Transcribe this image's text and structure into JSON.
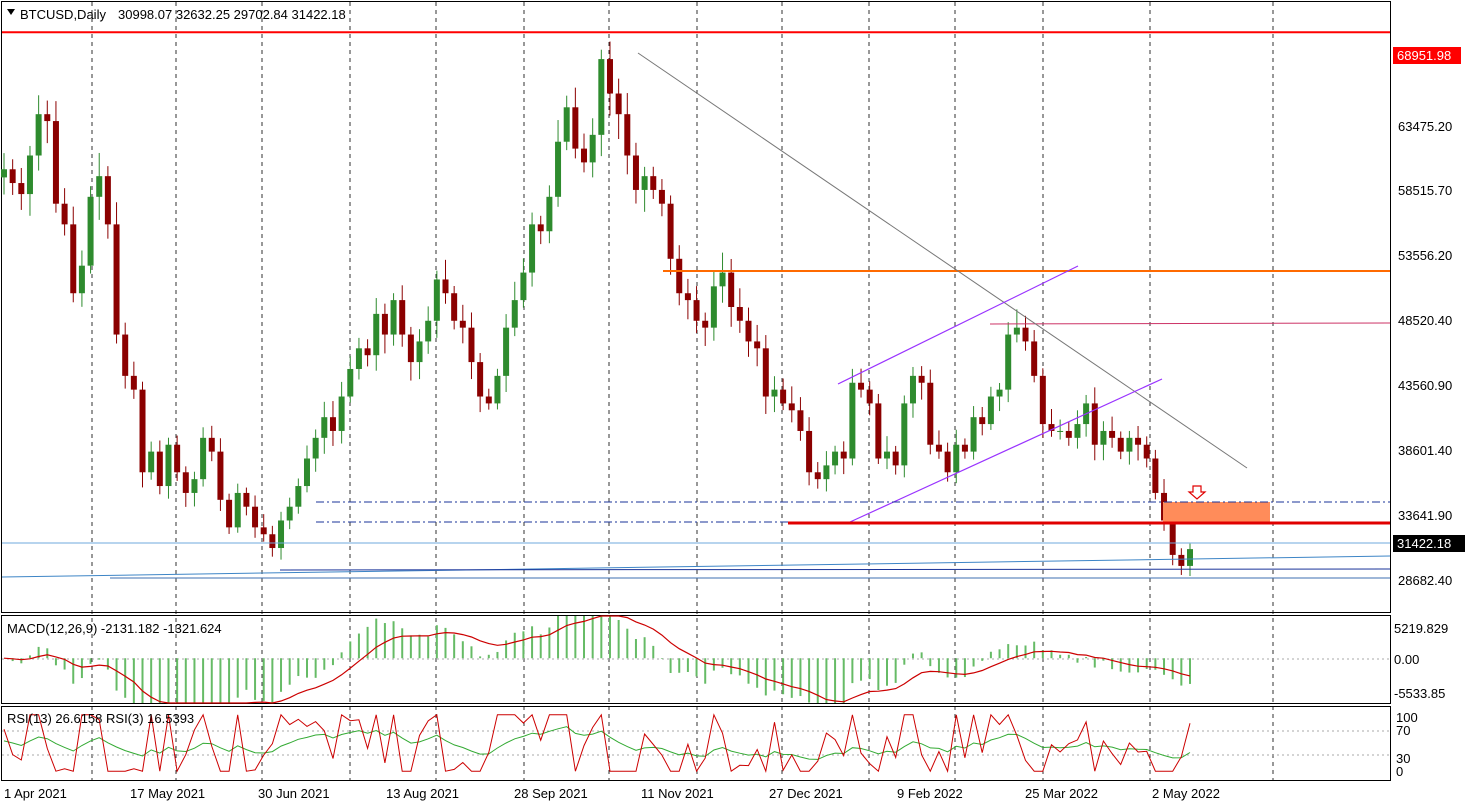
{
  "window": {
    "symbol_header": "BTCUSD,Daily",
    "ohlc_header": "30998.07 32632.25 29702.84 31422.18"
  },
  "colors": {
    "background": "#ffffff",
    "bull_candle": "#2e8b2e",
    "bear_candle": "#8b0000",
    "resistance_line": "#ff0000",
    "orange_line": "#ff6a00",
    "purple_channel": "#9933ff",
    "magenta_line": "#cc3366",
    "support_zone": "#ff8c5a",
    "macd_histogram": "#66bb66",
    "macd_signal": "#cc0000",
    "rsi13": "#33aa33",
    "rsi3": "#cc0000",
    "current_price_tag": "#000000",
    "high_price_tag": "#ff0000"
  },
  "price_panel": {
    "y_ticks": [
      "63475.20",
      "58515.70",
      "53556.20",
      "48520.40",
      "43560.90",
      "38601.40",
      "33641.90",
      "28682.40"
    ],
    "high_tag": "68951.98",
    "current_tag": "31422.18",
    "arrow_icon": "down-arrow-icon"
  },
  "macd_panel": {
    "label": "MACD(12,26,9) -2131.182 -1321.624",
    "y_ticks": [
      "5219.829",
      "0.00",
      "-5533.85"
    ]
  },
  "rsi_panel": {
    "label": "RSI(13) 26.6158  RSI(3) 16.5393",
    "y_ticks": [
      "100",
      "70",
      "30",
      "0"
    ]
  },
  "x_axis": {
    "labels": [
      "1 Apr 2021",
      "17 May 2021",
      "30 Jun 2021",
      "13 Aug 2021",
      "28 Sep 2021",
      "11 Nov 2021",
      "27 Dec 2021",
      "9 Feb 2022",
      "25 Mar 2022",
      "2 May 2022"
    ]
  },
  "chart_data": {
    "type": "candlestick",
    "symbol": "BTCUSD",
    "timeframe": "Daily",
    "x_labels": [
      "1 Apr 2021",
      "17 May 2021",
      "30 Jun 2021",
      "13 Aug 2021",
      "28 Sep 2021",
      "11 Nov 2021",
      "27 Dec 2021",
      "9 Feb 2022",
      "25 Mar 2022",
      "2 May 2022"
    ],
    "ylim": [
      27000,
      71000
    ],
    "close_path": [
      59000,
      58000,
      57200,
      60000,
      63000,
      62500,
      56500,
      55000,
      50000,
      52000,
      57000,
      58500,
      55000,
      47000,
      44000,
      43000,
      37000,
      38500,
      36000,
      39000,
      37000,
      35500,
      36500,
      39500,
      38500,
      35000,
      33000,
      35500,
      34500,
      33000,
      32500,
      31500,
      33500,
      34500,
      36000,
      38000,
      39500,
      41000,
      40000,
      42500,
      44500,
      46000,
      45500,
      48500,
      47000,
      49500,
      47000,
      45000,
      46500,
      48000,
      51000,
      50000,
      48000,
      47500,
      45000,
      42500,
      42000,
      44000,
      47500,
      49500,
      51500,
      55000,
      54500,
      57000,
      61000,
      63500,
      60500,
      59500,
      61500,
      67000,
      64500,
      63000,
      60000,
      57500,
      58500,
      57500,
      56500,
      52500,
      50000,
      49500,
      48000,
      47500,
      50500,
      51500,
      49000,
      48000,
      46500,
      46000,
      42500,
      43000,
      42000,
      41500,
      40000,
      37000,
      36500,
      37500,
      38500,
      38000,
      43500,
      43000,
      42000,
      38000,
      38500,
      37500,
      42000,
      44000,
      43500,
      39000,
      38500,
      37000,
      39000,
      38500,
      41000,
      40500,
      42500,
      43000,
      47000,
      47500,
      46500,
      44000,
      40500,
      40000,
      40000,
      39500,
      40500,
      42000,
      39000,
      40000,
      39500,
      38500,
      39500,
      39000,
      38000,
      35500,
      33500,
      31000,
      30200,
      31422
    ],
    "levels": {
      "all_time_high": 68951.98,
      "current_price": 31422.18
    },
    "macd": {
      "params": "12,26,9",
      "value": -2131.182,
      "signal": -1321.624,
      "ylim": [
        -5533.85,
        5219.829
      ]
    },
    "rsi": {
      "rsi13": 26.6158,
      "rsi3": 16.5393,
      "levels": [
        70,
        30
      ],
      "ylim": [
        0,
        100
      ]
    }
  }
}
